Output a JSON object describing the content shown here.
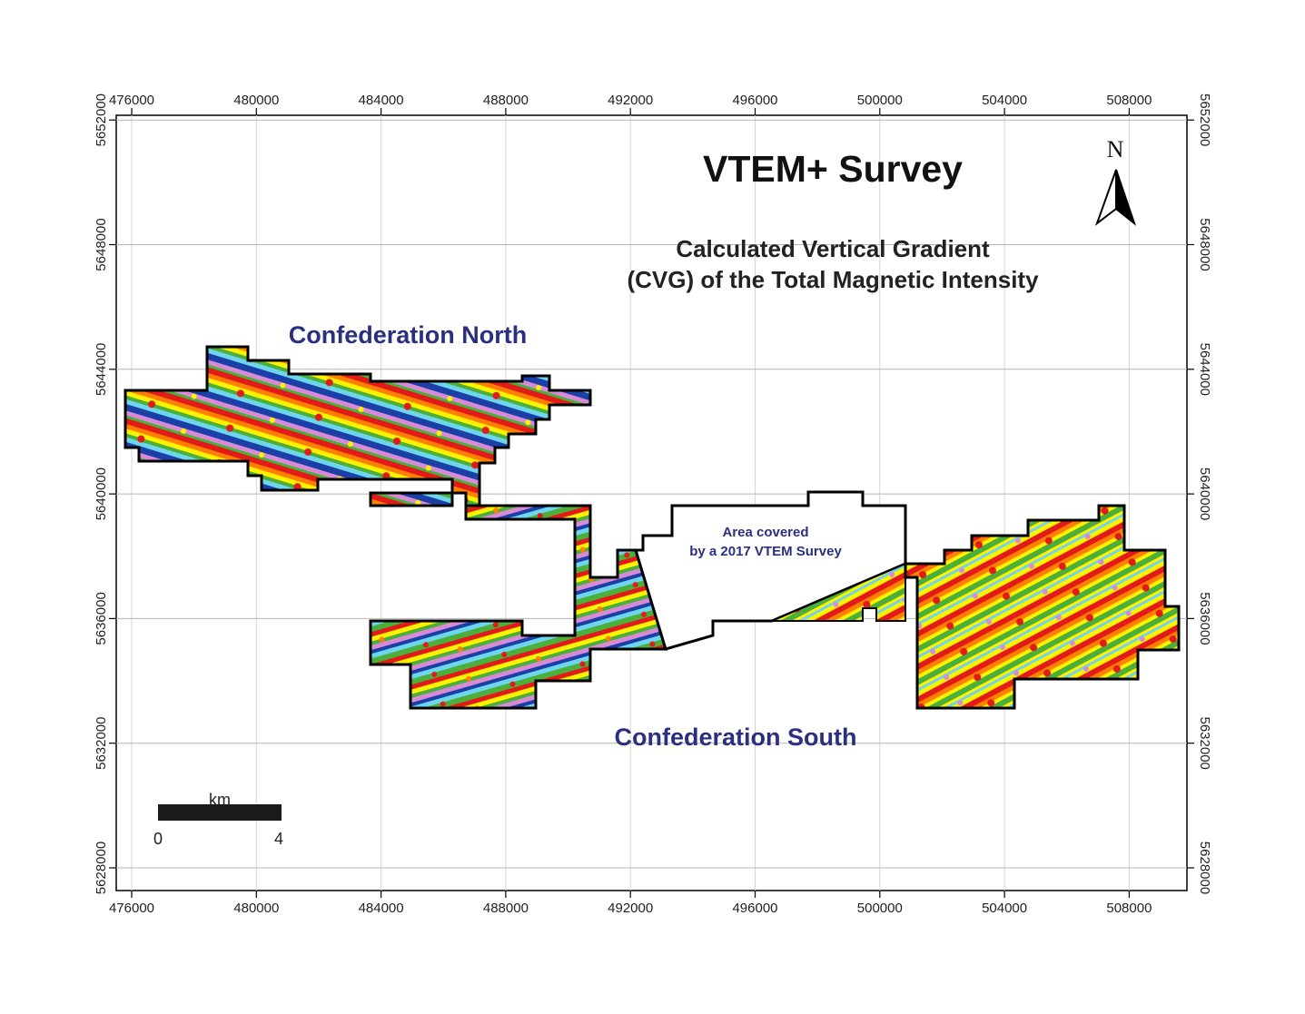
{
  "map": {
    "title": "VTEM+ Survey",
    "subtitle_line1": "Calculated Vertical Gradient",
    "subtitle_line2": "(CVG) of the Total Magnetic Intensity",
    "north_label": "N",
    "regions": {
      "north": "Confederation North",
      "south": "Confederation South"
    },
    "prior_survey_note_line1": "Area covered",
    "prior_survey_note_line2": "by a 2017 VTEM Survey",
    "scale_bar": {
      "unit": "km",
      "start": "0",
      "end": "4"
    },
    "easting_ticks": [
      "476000",
      "480000",
      "484000",
      "488000",
      "492000",
      "496000",
      "500000",
      "504000",
      "508000"
    ],
    "northing_ticks": [
      "5628000",
      "5632000",
      "5636000",
      "5640000",
      "5644000",
      "5648000",
      "5652000"
    ],
    "colors": {
      "frame": "#000000",
      "survey_outline": "#000000",
      "region_label": "#2b2f7f",
      "cvg_palette": [
        "#e21a1a",
        "#ff7f00",
        "#fff200",
        "#4caf3a",
        "#6dd5ee",
        "#1b3fa6",
        "#d98ad6"
      ]
    }
  }
}
